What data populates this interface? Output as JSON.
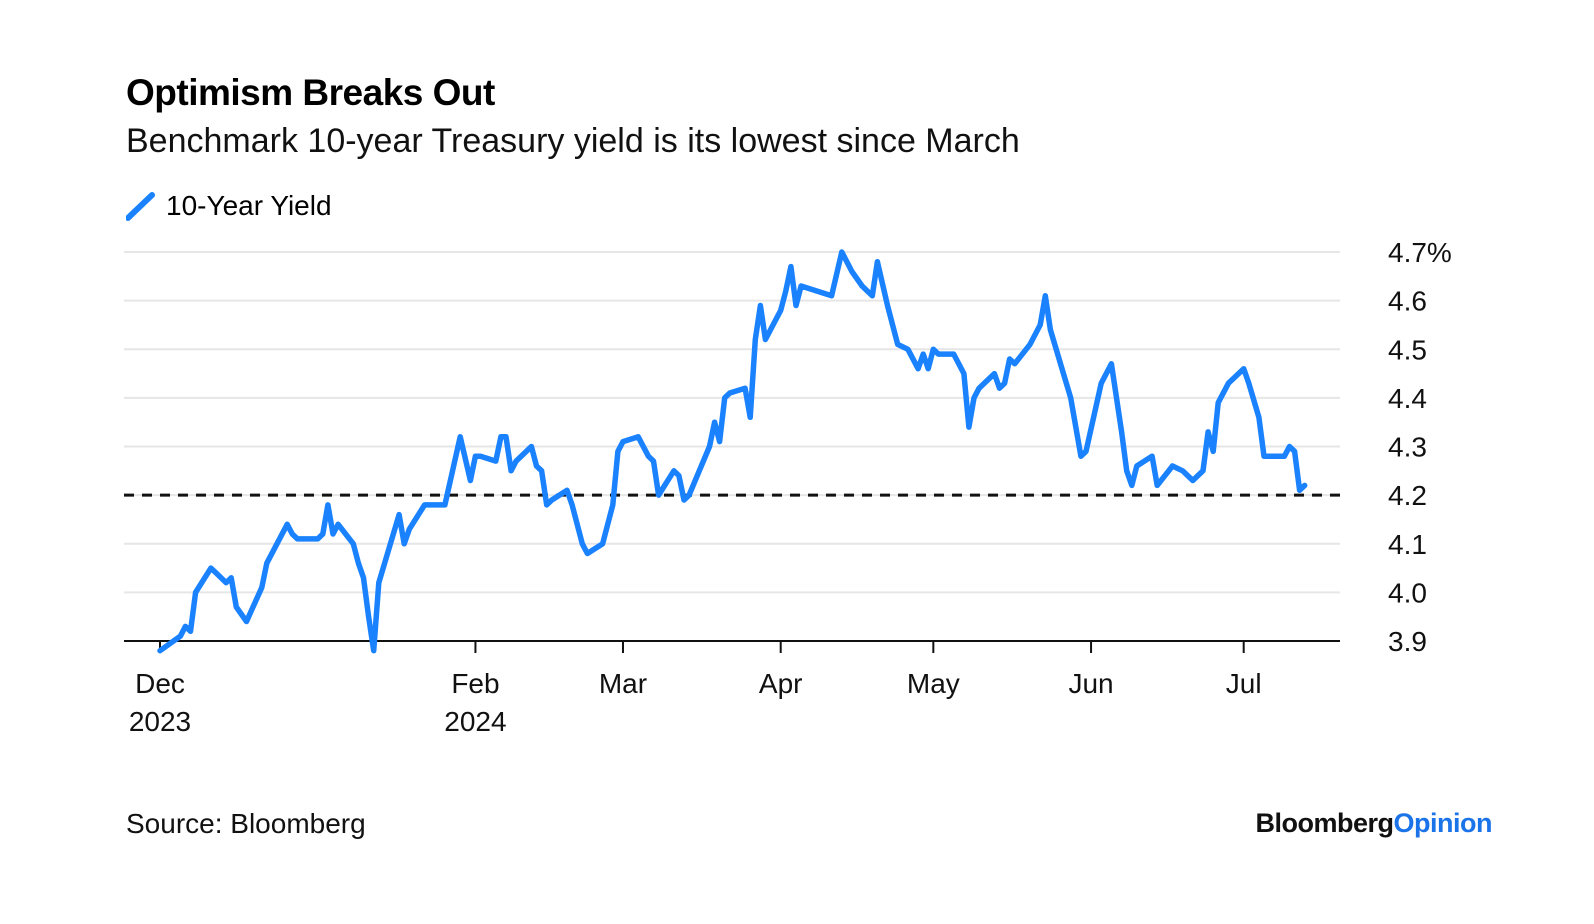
{
  "header": {
    "title": "Optimism Breaks Out",
    "subtitle": "Benchmark 10-year Treasury yield is its lowest since March"
  },
  "footer": {
    "source": "Source: Bloomberg",
    "brand_part1": "Bloomberg",
    "brand_part2": "Opinion"
  },
  "colors": {
    "line": "#1a82ff",
    "reference": "#111111",
    "grid": "#e6e6e6",
    "brand_accent": "#1a73e8"
  },
  "chart_data": {
    "type": "line",
    "title": "Optimism Breaks Out",
    "subtitle": "Benchmark 10-year Treasury yield is its lowest since March",
    "legend": [
      "10-Year Yield"
    ],
    "legend_position": "top-left",
    "grid": true,
    "ylim": [
      3.9,
      4.7
    ],
    "xlim": [
      "2023-12-01",
      "2024-07-16"
    ],
    "y_ticks": [
      "3.9",
      "4.0",
      "4.1",
      "4.2",
      "4.3",
      "4.4",
      "4.5",
      "4.6",
      "4.7%"
    ],
    "y_tick_values": [
      3.9,
      4.0,
      4.1,
      4.2,
      4.3,
      4.4,
      4.5,
      4.6,
      4.7
    ],
    "x_ticks": [
      {
        "date": "2023-12-01",
        "label": "Dec",
        "sublabel": "2023"
      },
      {
        "date": "2024-02-01",
        "label": "Feb",
        "sublabel": "2024"
      },
      {
        "date": "2024-03-01",
        "label": "Mar",
        "sublabel": ""
      },
      {
        "date": "2024-04-01",
        "label": "Apr",
        "sublabel": ""
      },
      {
        "date": "2024-05-01",
        "label": "May",
        "sublabel": ""
      },
      {
        "date": "2024-06-01",
        "label": "Jun",
        "sublabel": ""
      },
      {
        "date": "2024-07-01",
        "label": "Jul",
        "sublabel": ""
      }
    ],
    "reference_line": {
      "y": 4.2,
      "style": "dashed"
    },
    "series": [
      {
        "name": "10-Year Yield",
        "points": [
          [
            "2023-12-01",
            3.88
          ],
          [
            "2023-12-05",
            3.91
          ],
          [
            "2023-12-06",
            3.93
          ],
          [
            "2023-12-07",
            3.92
          ],
          [
            "2023-12-08",
            4.0
          ],
          [
            "2023-12-11",
            4.05
          ],
          [
            "2023-12-12",
            4.04
          ],
          [
            "2023-12-13",
            4.03
          ],
          [
            "2023-12-14",
            4.02
          ],
          [
            "2023-12-15",
            4.03
          ],
          [
            "2023-12-16",
            3.97
          ],
          [
            "2023-12-18",
            3.94
          ],
          [
            "2023-12-21",
            4.01
          ],
          [
            "2023-12-22",
            4.06
          ],
          [
            "2023-12-26",
            4.14
          ],
          [
            "2023-12-27",
            4.12
          ],
          [
            "2023-12-28",
            4.11
          ],
          [
            "2024-01-01",
            4.11
          ],
          [
            "2024-01-02",
            4.12
          ],
          [
            "2024-01-03",
            4.18
          ],
          [
            "2024-01-04",
            4.12
          ],
          [
            "2024-01-05",
            4.14
          ],
          [
            "2024-01-08",
            4.1
          ],
          [
            "2024-01-09",
            4.06
          ],
          [
            "2024-01-10",
            4.03
          ],
          [
            "2024-01-11",
            3.95
          ],
          [
            "2024-01-12",
            3.88
          ],
          [
            "2024-01-13",
            4.02
          ],
          [
            "2024-01-17",
            4.16
          ],
          [
            "2024-01-18",
            4.1
          ],
          [
            "2024-01-19",
            4.13
          ],
          [
            "2024-01-22",
            4.18
          ],
          [
            "2024-01-24",
            4.18
          ],
          [
            "2024-01-26",
            4.18
          ],
          [
            "2024-01-29",
            4.32
          ],
          [
            "2024-01-31",
            4.23
          ],
          [
            "2024-02-01",
            4.28
          ],
          [
            "2024-02-02",
            4.28
          ],
          [
            "2024-02-05",
            4.27
          ],
          [
            "2024-02-06",
            4.32
          ],
          [
            "2024-02-07",
            4.32
          ],
          [
            "2024-02-08",
            4.25
          ],
          [
            "2024-02-09",
            4.27
          ],
          [
            "2024-02-12",
            4.3
          ],
          [
            "2024-02-13",
            4.26
          ],
          [
            "2024-02-14",
            4.25
          ],
          [
            "2024-02-15",
            4.18
          ],
          [
            "2024-02-16",
            4.19
          ],
          [
            "2024-02-19",
            4.21
          ],
          [
            "2024-02-20",
            4.18
          ],
          [
            "2024-02-22",
            4.1
          ],
          [
            "2024-02-23",
            4.08
          ],
          [
            "2024-02-26",
            4.1
          ],
          [
            "2024-02-28",
            4.18
          ],
          [
            "2024-02-29",
            4.29
          ],
          [
            "2024-03-01",
            4.31
          ],
          [
            "2024-03-04",
            4.32
          ],
          [
            "2024-03-06",
            4.28
          ],
          [
            "2024-03-07",
            4.27
          ],
          [
            "2024-03-08",
            4.2
          ],
          [
            "2024-03-11",
            4.25
          ],
          [
            "2024-03-12",
            4.24
          ],
          [
            "2024-03-13",
            4.19
          ],
          [
            "2024-03-14",
            4.2
          ],
          [
            "2024-03-18",
            4.3
          ],
          [
            "2024-03-19",
            4.35
          ],
          [
            "2024-03-20",
            4.31
          ],
          [
            "2024-03-21",
            4.4
          ],
          [
            "2024-03-22",
            4.41
          ],
          [
            "2024-03-25",
            4.42
          ],
          [
            "2024-03-26",
            4.36
          ],
          [
            "2024-03-27",
            4.52
          ],
          [
            "2024-03-28",
            4.59
          ],
          [
            "2024-03-29",
            4.52
          ],
          [
            "2024-04-01",
            4.58
          ],
          [
            "2024-04-02",
            4.62
          ],
          [
            "2024-04-03",
            4.67
          ],
          [
            "2024-04-04",
            4.59
          ],
          [
            "2024-04-05",
            4.63
          ],
          [
            "2024-04-08",
            4.62
          ],
          [
            "2024-04-11",
            4.61
          ],
          [
            "2024-04-13",
            4.7
          ],
          [
            "2024-04-15",
            4.66
          ],
          [
            "2024-04-17",
            4.63
          ],
          [
            "2024-04-19",
            4.61
          ],
          [
            "2024-04-20",
            4.68
          ],
          [
            "2024-04-22",
            4.59
          ],
          [
            "2024-04-24",
            4.51
          ],
          [
            "2024-04-26",
            4.5
          ],
          [
            "2024-04-28",
            4.46
          ],
          [
            "2024-04-29",
            4.49
          ],
          [
            "2024-04-30",
            4.46
          ],
          [
            "2024-05-01",
            4.5
          ],
          [
            "2024-05-02",
            4.49
          ],
          [
            "2024-05-05",
            4.49
          ],
          [
            "2024-05-07",
            4.45
          ],
          [
            "2024-05-08",
            4.34
          ],
          [
            "2024-05-09",
            4.4
          ],
          [
            "2024-05-10",
            4.42
          ],
          [
            "2024-05-13",
            4.45
          ],
          [
            "2024-05-14",
            4.42
          ],
          [
            "2024-05-15",
            4.43
          ],
          [
            "2024-05-16",
            4.48
          ],
          [
            "2024-05-17",
            4.47
          ],
          [
            "2024-05-20",
            4.51
          ],
          [
            "2024-05-22",
            4.55
          ],
          [
            "2024-05-23",
            4.61
          ],
          [
            "2024-05-24",
            4.54
          ],
          [
            "2024-05-28",
            4.4
          ],
          [
            "2024-05-30",
            4.28
          ],
          [
            "2024-05-31",
            4.29
          ],
          [
            "2024-06-03",
            4.43
          ],
          [
            "2024-06-05",
            4.47
          ],
          [
            "2024-06-07",
            4.33
          ],
          [
            "2024-06-08",
            4.25
          ],
          [
            "2024-06-09",
            4.22
          ],
          [
            "2024-06-10",
            4.26
          ],
          [
            "2024-06-13",
            4.28
          ],
          [
            "2024-06-14",
            4.22
          ],
          [
            "2024-06-17",
            4.26
          ],
          [
            "2024-06-19",
            4.25
          ],
          [
            "2024-06-21",
            4.23
          ],
          [
            "2024-06-23",
            4.25
          ],
          [
            "2024-06-24",
            4.33
          ],
          [
            "2024-06-25",
            4.29
          ],
          [
            "2024-06-26",
            4.39
          ],
          [
            "2024-06-28",
            4.43
          ],
          [
            "2024-07-01",
            4.46
          ],
          [
            "2024-07-02",
            4.43
          ],
          [
            "2024-07-04",
            4.36
          ],
          [
            "2024-07-05",
            4.28
          ],
          [
            "2024-07-09",
            4.28
          ],
          [
            "2024-07-10",
            4.3
          ],
          [
            "2024-07-11",
            4.29
          ],
          [
            "2024-07-12",
            4.21
          ],
          [
            "2024-07-13",
            4.22
          ]
        ]
      }
    ]
  }
}
